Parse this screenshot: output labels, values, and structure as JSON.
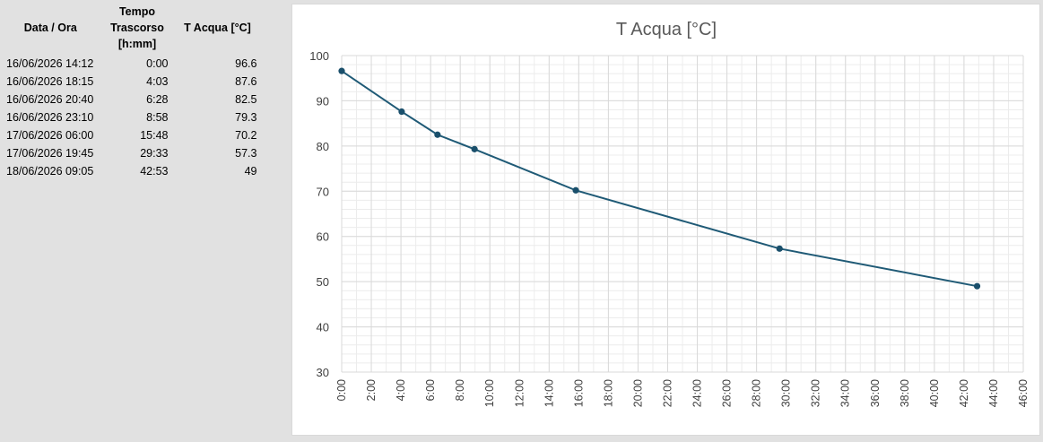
{
  "table": {
    "headers": [
      "Data / Ora",
      "Tempo Trascorso [h:mm]",
      "T Acqua [°C]"
    ],
    "rows": [
      [
        "16/06/2026 14:12",
        "0:00",
        "96.6"
      ],
      [
        "16/06/2026 18:15",
        "4:03",
        "87.6"
      ],
      [
        "16/06/2026 20:40",
        "6:28",
        "82.5"
      ],
      [
        "16/06/2026 23:10",
        "8:58",
        "79.3"
      ],
      [
        "17/06/2026 06:00",
        "15:48",
        "70.2"
      ],
      [
        "17/06/2026 19:45",
        "29:33",
        "57.3"
      ],
      [
        "18/06/2026 09:05",
        "42:53",
        "49"
      ]
    ]
  },
  "chart_data": {
    "type": "line",
    "title": "T Acqua [°C]",
    "xlabel": "",
    "ylabel": "",
    "x_units": "hours",
    "x": [
      0.0,
      4.05,
      6.4667,
      8.9667,
      15.8,
      29.55,
      42.8833
    ],
    "y": [
      96.6,
      87.6,
      82.5,
      79.3,
      70.2,
      57.3,
      49
    ],
    "xlim": [
      0,
      46
    ],
    "ylim": [
      30,
      100
    ],
    "x_ticks": [
      "0:00",
      "2:00",
      "4:00",
      "6:00",
      "8:00",
      "10:00",
      "12:00",
      "14:00",
      "16:00",
      "18:00",
      "20:00",
      "22:00",
      "24:00",
      "26:00",
      "28:00",
      "30:00",
      "32:00",
      "34:00",
      "36:00",
      "38:00",
      "40:00",
      "42:00",
      "44:00",
      "46:00"
    ],
    "y_ticks": [
      "30",
      "40",
      "50",
      "60",
      "70",
      "80",
      "90",
      "100"
    ],
    "grid": true,
    "legend": "none",
    "line_color": "#1f5a76",
    "marker_color": "#1a4f6b"
  }
}
